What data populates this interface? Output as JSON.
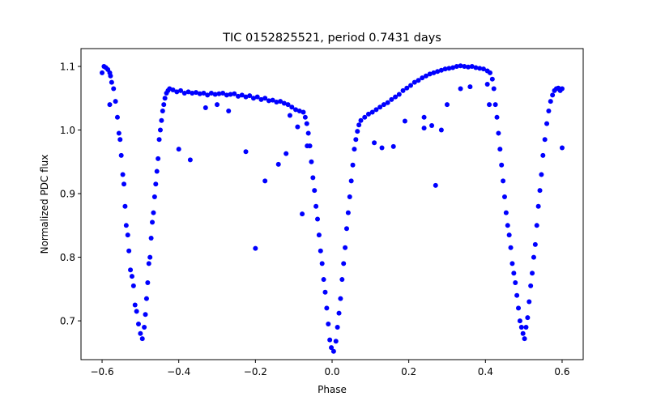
{
  "chart_data": {
    "type": "scatter",
    "title": "TIC 0152825521, period 0.7431 days",
    "xlabel": "Phase",
    "ylabel": "Normalized PDC flux",
    "xlim": [
      -0.655,
      0.655
    ],
    "ylim": [
      0.639,
      1.128
    ],
    "xticks": [
      -0.6,
      -0.4,
      -0.2,
      0.0,
      0.2,
      0.4,
      0.6
    ],
    "xtick_labels": [
      "−0.6",
      "−0.4",
      "−0.2",
      "0.0",
      "0.2",
      "0.4",
      "0.6"
    ],
    "yticks": [
      0.7,
      0.8,
      0.9,
      1.0,
      1.1
    ],
    "ytick_labels": [
      "0.7",
      "0.8",
      "0.9",
      "1.0",
      "1.1"
    ],
    "grid": false,
    "marker_color": "#0000ff",
    "series": [
      {
        "name": "flux",
        "points": [
          [
            -0.6,
            1.09
          ],
          [
            -0.595,
            1.1
          ],
          [
            -0.59,
            1.098
          ],
          [
            -0.585,
            1.095
          ],
          [
            -0.58,
            1.09
          ],
          [
            -0.578,
            1.085
          ],
          [
            -0.575,
            1.075
          ],
          [
            -0.57,
            1.065
          ],
          [
            -0.565,
            1.045
          ],
          [
            -0.56,
            1.02
          ],
          [
            -0.556,
            0.995
          ],
          [
            -0.553,
            0.985
          ],
          [
            -0.55,
            0.96
          ],
          [
            -0.546,
            0.93
          ],
          [
            -0.543,
            0.915
          ],
          [
            -0.54,
            0.88
          ],
          [
            -0.537,
            0.85
          ],
          [
            -0.533,
            0.835
          ],
          [
            -0.53,
            0.81
          ],
          [
            -0.526,
            0.78
          ],
          [
            -0.522,
            0.77
          ],
          [
            -0.518,
            0.755
          ],
          [
            -0.514,
            0.725
          ],
          [
            -0.51,
            0.715
          ],
          [
            -0.505,
            0.695
          ],
          [
            -0.5,
            0.68
          ],
          [
            -0.495,
            0.672
          ],
          [
            -0.49,
            0.69
          ],
          [
            -0.487,
            0.71
          ],
          [
            -0.484,
            0.735
          ],
          [
            -0.481,
            0.76
          ],
          [
            -0.478,
            0.79
          ],
          [
            -0.475,
            0.8
          ],
          [
            -0.472,
            0.83
          ],
          [
            -0.469,
            0.855
          ],
          [
            -0.466,
            0.87
          ],
          [
            -0.463,
            0.895
          ],
          [
            -0.46,
            0.915
          ],
          [
            -0.457,
            0.935
          ],
          [
            -0.454,
            0.955
          ],
          [
            -0.451,
            0.985
          ],
          [
            -0.448,
            1.0
          ],
          [
            -0.445,
            1.015
          ],
          [
            -0.442,
            1.03
          ],
          [
            -0.439,
            1.04
          ],
          [
            -0.436,
            1.05
          ],
          [
            -0.432,
            1.058
          ],
          [
            -0.428,
            1.062
          ],
          [
            -0.424,
            1.065
          ],
          [
            -0.415,
            1.063
          ],
          [
            -0.405,
            1.06
          ],
          [
            -0.395,
            1.062
          ],
          [
            -0.385,
            1.058
          ],
          [
            -0.375,
            1.06
          ],
          [
            -0.365,
            1.058
          ],
          [
            -0.355,
            1.059
          ],
          [
            -0.345,
            1.057
          ],
          [
            -0.335,
            1.058
          ],
          [
            -0.325,
            1.055
          ],
          [
            -0.315,
            1.058
          ],
          [
            -0.305,
            1.056
          ],
          [
            -0.295,
            1.057
          ],
          [
            -0.285,
            1.058
          ],
          [
            -0.275,
            1.055
          ],
          [
            -0.265,
            1.056
          ],
          [
            -0.255,
            1.057
          ],
          [
            -0.245,
            1.053
          ],
          [
            -0.235,
            1.055
          ],
          [
            -0.225,
            1.052
          ],
          [
            -0.215,
            1.054
          ],
          [
            -0.205,
            1.05
          ],
          [
            -0.195,
            1.052
          ],
          [
            -0.185,
            1.048
          ],
          [
            -0.175,
            1.05
          ],
          [
            -0.165,
            1.046
          ],
          [
            -0.155,
            1.047
          ],
          [
            -0.145,
            1.044
          ],
          [
            -0.135,
            1.045
          ],
          [
            -0.125,
            1.042
          ],
          [
            -0.115,
            1.04
          ],
          [
            -0.105,
            1.036
          ],
          [
            -0.095,
            1.032
          ],
          [
            -0.085,
            1.03
          ],
          [
            -0.075,
            1.028
          ],
          [
            -0.07,
            1.02
          ],
          [
            -0.066,
            1.01
          ],
          [
            -0.062,
            0.995
          ],
          [
            -0.058,
            0.975
          ],
          [
            -0.054,
            0.95
          ],
          [
            -0.05,
            0.925
          ],
          [
            -0.046,
            0.905
          ],
          [
            -0.042,
            0.88
          ],
          [
            -0.038,
            0.86
          ],
          [
            -0.034,
            0.835
          ],
          [
            -0.03,
            0.81
          ],
          [
            -0.026,
            0.79
          ],
          [
            -0.022,
            0.765
          ],
          [
            -0.018,
            0.745
          ],
          [
            -0.014,
            0.72
          ],
          [
            -0.01,
            0.695
          ],
          [
            -0.006,
            0.67
          ],
          [
            -0.002,
            0.658
          ],
          [
            0.004,
            0.652
          ],
          [
            0.01,
            0.668
          ],
          [
            0.014,
            0.69
          ],
          [
            0.018,
            0.712
          ],
          [
            0.022,
            0.735
          ],
          [
            0.026,
            0.765
          ],
          [
            0.03,
            0.79
          ],
          [
            0.034,
            0.815
          ],
          [
            0.038,
            0.845
          ],
          [
            0.042,
            0.87
          ],
          [
            0.046,
            0.895
          ],
          [
            0.05,
            0.92
          ],
          [
            0.054,
            0.945
          ],
          [
            0.058,
            0.97
          ],
          [
            0.062,
            0.985
          ],
          [
            0.066,
            0.998
          ],
          [
            0.07,
            1.008
          ],
          [
            0.075,
            1.015
          ],
          [
            0.085,
            1.02
          ],
          [
            0.095,
            1.025
          ],
          [
            0.105,
            1.028
          ],
          [
            0.115,
            1.032
          ],
          [
            0.125,
            1.036
          ],
          [
            0.135,
            1.04
          ],
          [
            0.145,
            1.043
          ],
          [
            0.155,
            1.048
          ],
          [
            0.165,
            1.052
          ],
          [
            0.175,
            1.056
          ],
          [
            0.185,
            1.062
          ],
          [
            0.195,
            1.066
          ],
          [
            0.205,
            1.07
          ],
          [
            0.215,
            1.075
          ],
          [
            0.225,
            1.078
          ],
          [
            0.235,
            1.082
          ],
          [
            0.245,
            1.085
          ],
          [
            0.255,
            1.088
          ],
          [
            0.265,
            1.09
          ],
          [
            0.275,
            1.092
          ],
          [
            0.285,
            1.094
          ],
          [
            0.295,
            1.096
          ],
          [
            0.305,
            1.097
          ],
          [
            0.315,
            1.098
          ],
          [
            0.325,
            1.1
          ],
          [
            0.335,
            1.101
          ],
          [
            0.345,
            1.1
          ],
          [
            0.355,
            1.099
          ],
          [
            0.365,
            1.1
          ],
          [
            0.375,
            1.098
          ],
          [
            0.385,
            1.097
          ],
          [
            0.395,
            1.096
          ],
          [
            0.405,
            1.093
          ],
          [
            0.412,
            1.09
          ],
          [
            0.418,
            1.08
          ],
          [
            0.422,
            1.065
          ],
          [
            0.426,
            1.04
          ],
          [
            0.43,
            1.02
          ],
          [
            0.434,
            0.995
          ],
          [
            0.438,
            0.97
          ],
          [
            0.442,
            0.945
          ],
          [
            0.446,
            0.92
          ],
          [
            0.45,
            0.895
          ],
          [
            0.454,
            0.87
          ],
          [
            0.458,
            0.85
          ],
          [
            0.462,
            0.835
          ],
          [
            0.466,
            0.815
          ],
          [
            0.47,
            0.79
          ],
          [
            0.474,
            0.775
          ],
          [
            0.478,
            0.76
          ],
          [
            0.482,
            0.74
          ],
          [
            0.486,
            0.72
          ],
          [
            0.49,
            0.7
          ],
          [
            0.494,
            0.69
          ],
          [
            0.498,
            0.68
          ],
          [
            0.502,
            0.672
          ],
          [
            0.506,
            0.69
          ],
          [
            0.51,
            0.705
          ],
          [
            0.514,
            0.73
          ],
          [
            0.518,
            0.755
          ],
          [
            0.522,
            0.775
          ],
          [
            0.526,
            0.8
          ],
          [
            0.53,
            0.82
          ],
          [
            0.534,
            0.85
          ],
          [
            0.538,
            0.88
          ],
          [
            0.542,
            0.905
          ],
          [
            0.546,
            0.93
          ],
          [
            0.55,
            0.96
          ],
          [
            0.555,
            0.985
          ],
          [
            0.56,
            1.01
          ],
          [
            0.565,
            1.03
          ],
          [
            0.57,
            1.045
          ],
          [
            0.575,
            1.055
          ],
          [
            0.58,
            1.062
          ],
          [
            0.585,
            1.065
          ],
          [
            0.59,
            1.066
          ],
          [
            0.595,
            1.062
          ],
          [
            0.6,
            1.065
          ],
          [
            -0.58,
            1.04
          ],
          [
            -0.4,
            0.97
          ],
          [
            -0.37,
            0.953
          ],
          [
            -0.27,
            1.03
          ],
          [
            -0.225,
            0.966
          ],
          [
            -0.2,
            0.814
          ],
          [
            -0.175,
            0.92
          ],
          [
            -0.14,
            0.946
          ],
          [
            -0.12,
            0.963
          ],
          [
            -0.11,
            1.023
          ],
          [
            -0.09,
            1.005
          ],
          [
            -0.078,
            0.868
          ],
          [
            -0.065,
            0.975
          ],
          [
            0.11,
            0.98
          ],
          [
            0.13,
            0.972
          ],
          [
            0.16,
            0.974
          ],
          [
            0.19,
            1.014
          ],
          [
            0.24,
            1.02
          ],
          [
            0.24,
            1.003
          ],
          [
            0.26,
            1.007
          ],
          [
            0.27,
            0.913
          ],
          [
            0.285,
            1.0
          ],
          [
            0.3,
            1.04
          ],
          [
            0.335,
            1.065
          ],
          [
            0.36,
            1.068
          ],
          [
            0.405,
            1.072
          ],
          [
            0.41,
            1.04
          ],
          [
            0.6,
            0.972
          ],
          [
            -0.3,
            1.04
          ],
          [
            -0.33,
            1.035
          ]
        ]
      }
    ]
  }
}
